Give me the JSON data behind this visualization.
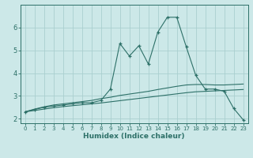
{
  "title": "",
  "xlabel": "Humidex (Indice chaleur)",
  "ylabel": "",
  "bg_color": "#cce8e8",
  "grid_color": "#aacfcf",
  "line_color": "#2d7068",
  "x": [
    0,
    1,
    2,
    3,
    4,
    5,
    6,
    7,
    8,
    9,
    10,
    11,
    12,
    13,
    14,
    15,
    16,
    17,
    18,
    19,
    20,
    21,
    22,
    23
  ],
  "y_main": [
    2.3,
    2.4,
    2.5,
    2.55,
    2.6,
    2.65,
    2.7,
    2.7,
    2.8,
    3.3,
    5.3,
    4.75,
    5.2,
    4.4,
    5.8,
    6.45,
    6.45,
    5.15,
    3.9,
    3.3,
    3.3,
    3.2,
    2.45,
    1.95
  ],
  "y_smooth1": [
    2.3,
    2.42,
    2.52,
    2.6,
    2.65,
    2.7,
    2.75,
    2.8,
    2.88,
    2.94,
    3.02,
    3.08,
    3.14,
    3.2,
    3.28,
    3.35,
    3.42,
    3.48,
    3.5,
    3.5,
    3.48,
    3.48,
    3.5,
    3.52
  ],
  "y_smooth2": [
    2.3,
    2.36,
    2.42,
    2.48,
    2.53,
    2.57,
    2.61,
    2.65,
    2.69,
    2.74,
    2.79,
    2.84,
    2.89,
    2.94,
    2.99,
    3.04,
    3.09,
    3.14,
    3.18,
    3.2,
    3.22,
    3.24,
    3.26,
    3.28
  ],
  "xlim": [
    -0.5,
    23.5
  ],
  "ylim": [
    1.8,
    7.0
  ],
  "yticks": [
    2,
    3,
    4,
    5,
    6
  ],
  "xticks": [
    0,
    1,
    2,
    3,
    4,
    5,
    6,
    7,
    8,
    9,
    10,
    11,
    12,
    13,
    14,
    15,
    16,
    17,
    18,
    19,
    20,
    21,
    22,
    23
  ]
}
